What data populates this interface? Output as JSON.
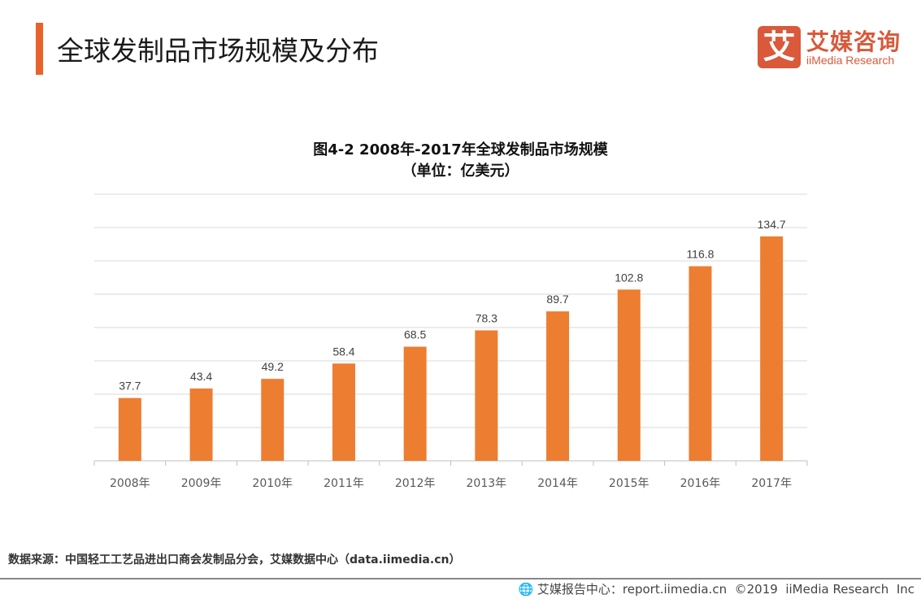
{
  "header": {
    "title": "全球发制品市场规模及分布"
  },
  "logo": {
    "cn": "艾媒咨询",
    "en": "iiMedia Research",
    "mark": "艾"
  },
  "colors": {
    "accent": "#e8622c",
    "bar": "#ed7d31",
    "logo": "#d9593a"
  },
  "chart_data": {
    "type": "bar",
    "title": "图4-2 2008年-2017年全球发制品市场规模",
    "subtitle": "（单位：亿美元）",
    "categories": [
      "2008年",
      "2009年",
      "2010年",
      "2011年",
      "2012年",
      "2013年",
      "2014年",
      "2015年",
      "2016年",
      "2017年"
    ],
    "values": [
      37.7,
      43.4,
      49.2,
      58.4,
      68.5,
      78.3,
      89.7,
      102.8,
      116.8,
      134.7
    ],
    "ylim": [
      0,
      160
    ],
    "ystep": 20,
    "grid": true,
    "data_labels": true
  },
  "source": "数据来源：中国轻工工艺品进出口商会发制品分会，艾媒数据中心（data.iimedia.cn）",
  "footer": {
    "icon": "globe-icon",
    "text": "艾媒报告中心：report.iimedia.cn  ©2019  iiMedia Research  Inc"
  }
}
